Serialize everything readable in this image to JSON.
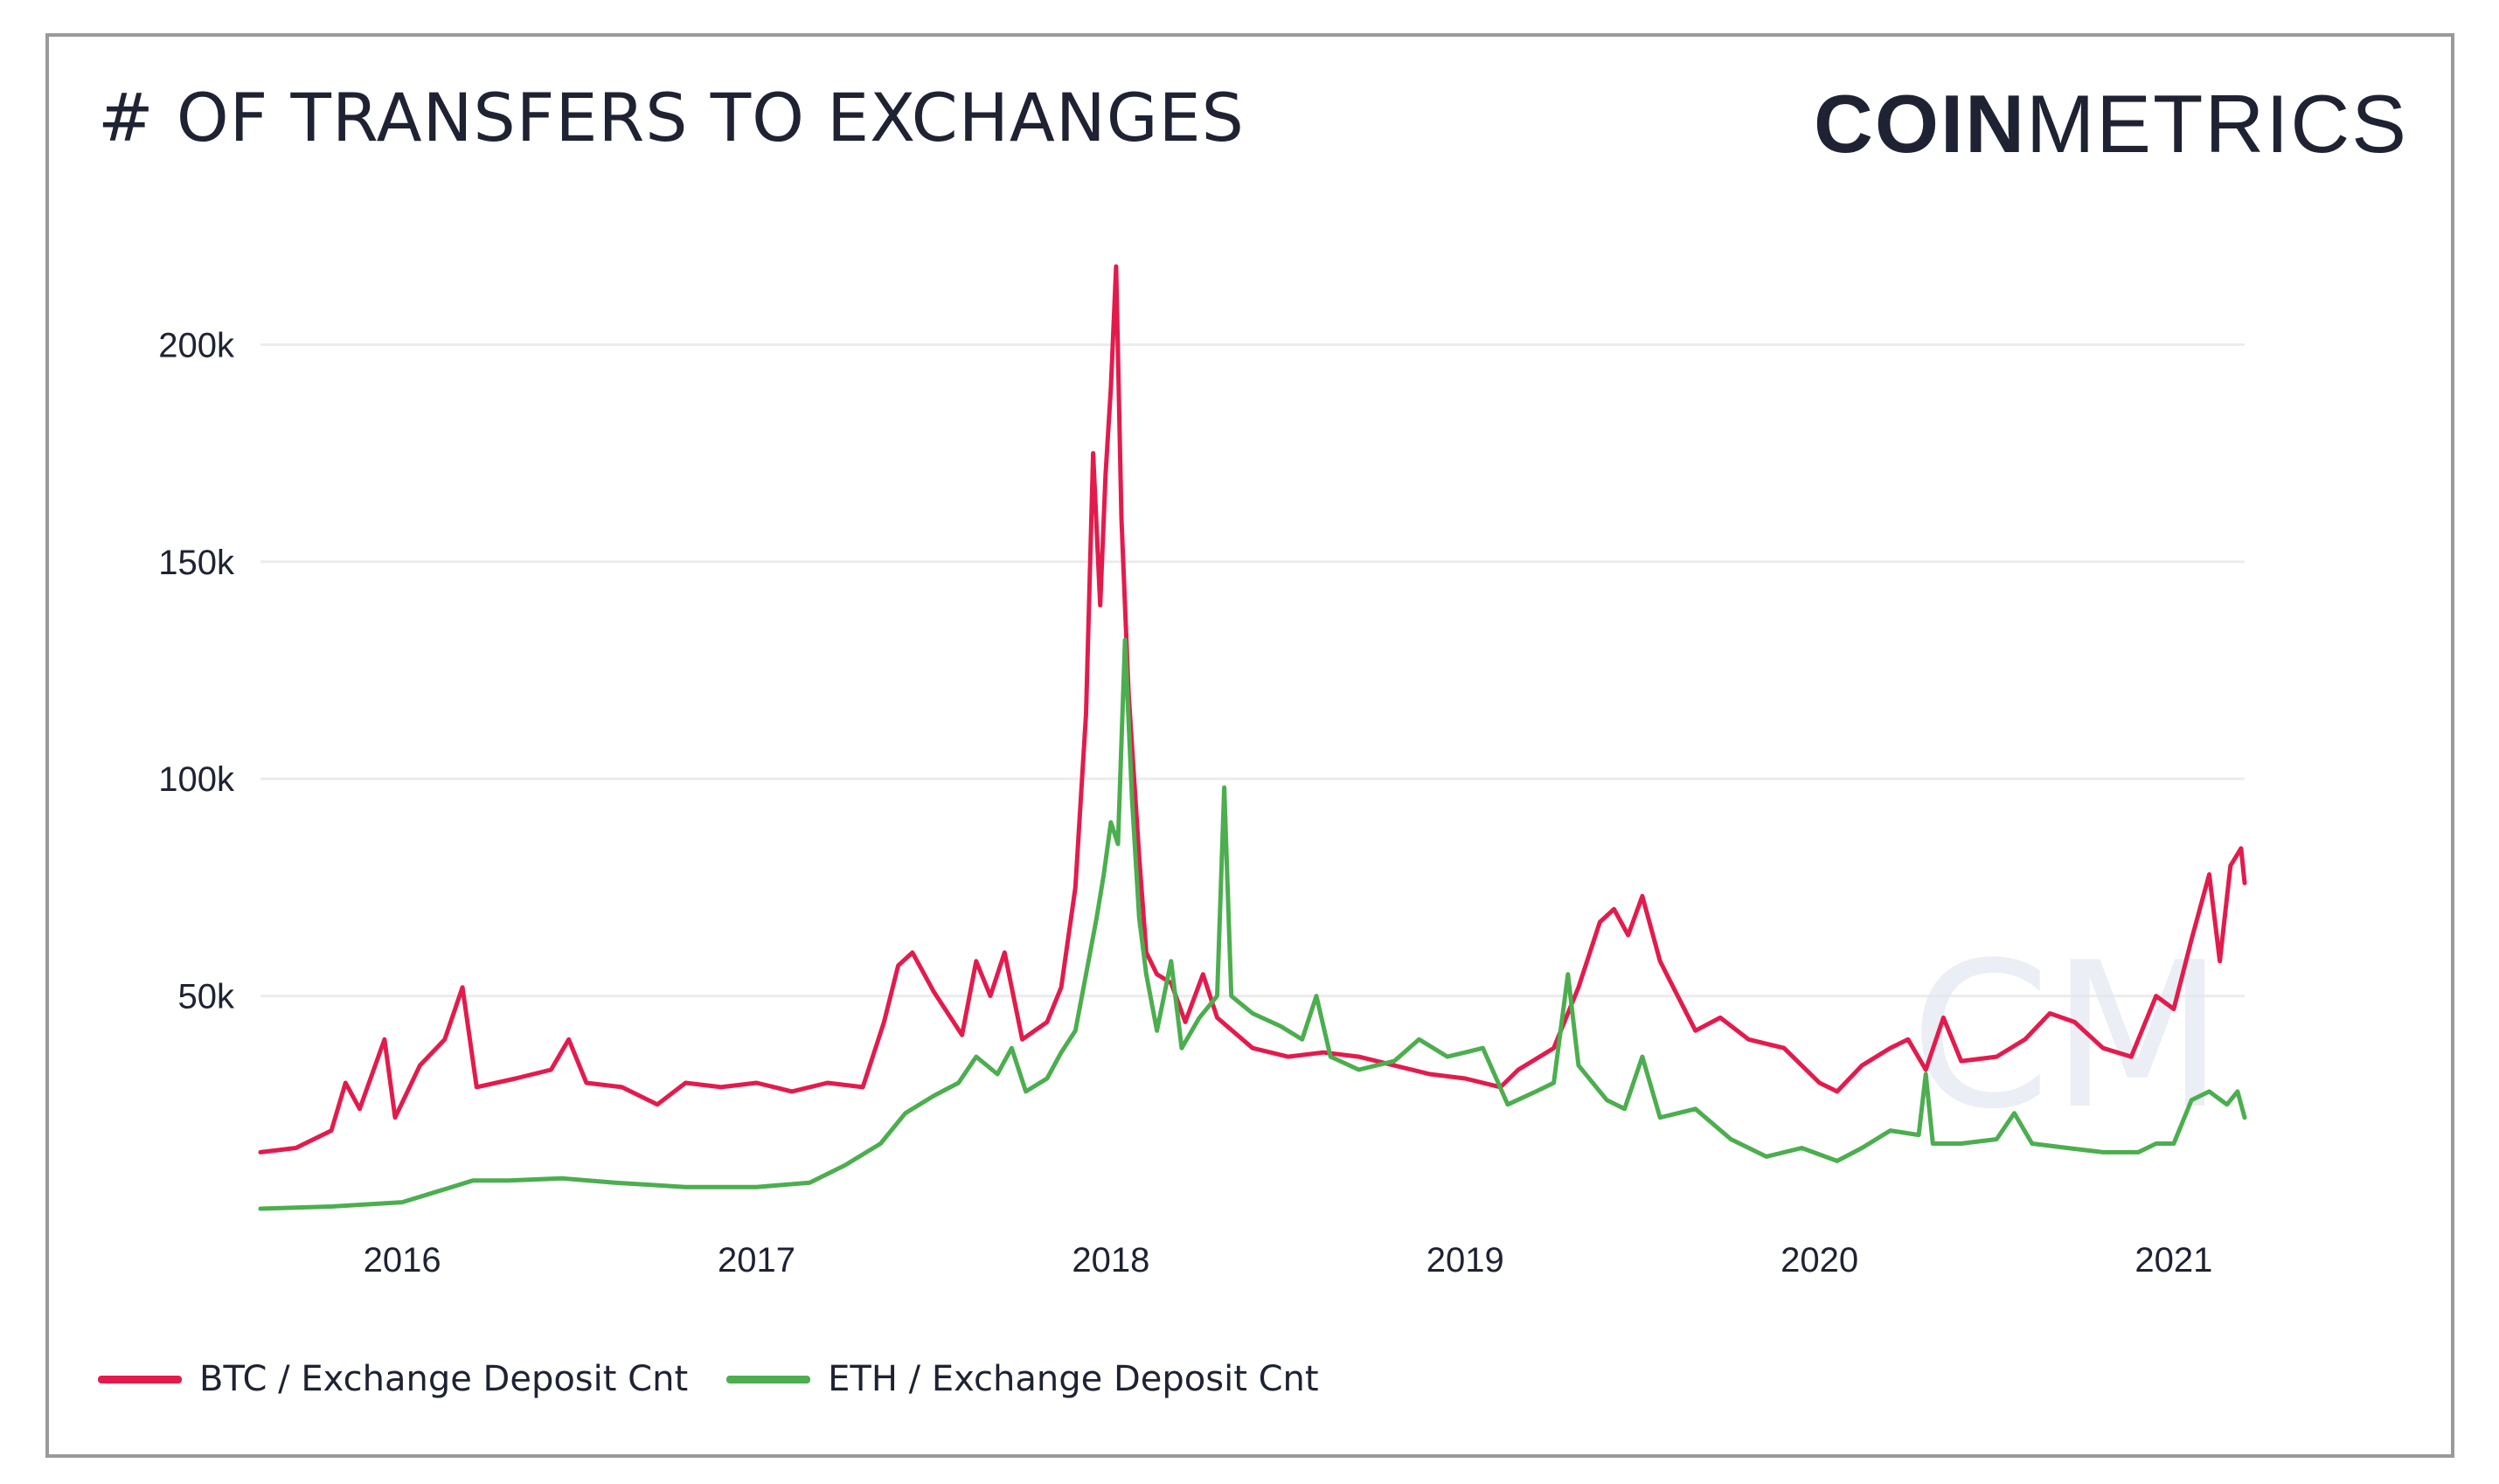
{
  "header": {
    "title": "# OF TRANSFERS TO EXCHANGES",
    "logo": {
      "bold": "COIN",
      "light": "METRICS"
    }
  },
  "watermark": "CM",
  "colors": {
    "btc": "#e31b4c",
    "eth": "#4cae4f",
    "grid": "#ececec",
    "text": "#1e2232",
    "frame": "#9a9a9a"
  },
  "chart_data": {
    "type": "line",
    "title": "# OF TRANSFERS TO EXCHANGES",
    "xlabel": "",
    "ylabel": "",
    "xlim": [
      2015.6,
      2021.2
    ],
    "ylim": [
      0,
      220000
    ],
    "x_ticks": [
      {
        "value": 2016,
        "label": "2016"
      },
      {
        "value": 2017,
        "label": "2017"
      },
      {
        "value": 2018,
        "label": "2018"
      },
      {
        "value": 2019,
        "label": "2019"
      },
      {
        "value": 2020,
        "label": "2020"
      },
      {
        "value": 2021,
        "label": "2021"
      }
    ],
    "y_ticks": [
      {
        "value": 50000,
        "label": "50k"
      },
      {
        "value": 100000,
        "label": "100k"
      },
      {
        "value": 150000,
        "label": "150k"
      },
      {
        "value": 200000,
        "label": "200k"
      }
    ],
    "grid": "horizontal",
    "legend_position": "bottom-left",
    "series": [
      {
        "name": "BTC / Exchange Deposit Cnt",
        "color": "#e31b4c",
        "points": [
          [
            2015.6,
            14000
          ],
          [
            2015.7,
            15000
          ],
          [
            2015.8,
            19000
          ],
          [
            2015.84,
            30000
          ],
          [
            2015.88,
            24000
          ],
          [
            2015.95,
            40000
          ],
          [
            2015.98,
            22000
          ],
          [
            2016.05,
            34000
          ],
          [
            2016.12,
            40000
          ],
          [
            2016.17,
            52000
          ],
          [
            2016.21,
            29000
          ],
          [
            2016.32,
            31000
          ],
          [
            2016.42,
            33000
          ],
          [
            2016.47,
            40000
          ],
          [
            2016.52,
            30000
          ],
          [
            2016.62,
            29000
          ],
          [
            2016.72,
            25000
          ],
          [
            2016.8,
            30000
          ],
          [
            2016.9,
            29000
          ],
          [
            2017.0,
            30000
          ],
          [
            2017.1,
            28000
          ],
          [
            2017.2,
            30000
          ],
          [
            2017.3,
            29000
          ],
          [
            2017.36,
            44000
          ],
          [
            2017.4,
            57000
          ],
          [
            2017.44,
            60000
          ],
          [
            2017.5,
            51000
          ],
          [
            2017.58,
            41000
          ],
          [
            2017.62,
            58000
          ],
          [
            2017.66,
            50000
          ],
          [
            2017.7,
            60000
          ],
          [
            2017.75,
            40000
          ],
          [
            2017.82,
            44000
          ],
          [
            2017.86,
            52000
          ],
          [
            2017.9,
            75000
          ],
          [
            2017.93,
            115000
          ],
          [
            2017.95,
            175000
          ],
          [
            2017.97,
            140000
          ],
          [
            2017.985,
            170000
          ],
          [
            2018.0,
            190000
          ],
          [
            2018.015,
            218000
          ],
          [
            2018.03,
            160000
          ],
          [
            2018.05,
            120000
          ],
          [
            2018.08,
            82000
          ],
          [
            2018.1,
            60000
          ],
          [
            2018.13,
            55000
          ],
          [
            2018.17,
            53000
          ],
          [
            2018.21,
            44000
          ],
          [
            2018.26,
            55000
          ],
          [
            2018.3,
            45000
          ],
          [
            2018.4,
            38000
          ],
          [
            2018.5,
            36000
          ],
          [
            2018.6,
            37000
          ],
          [
            2018.7,
            36000
          ],
          [
            2018.8,
            34000
          ],
          [
            2018.9,
            32000
          ],
          [
            2019.0,
            31000
          ],
          [
            2019.1,
            29000
          ],
          [
            2019.15,
            33000
          ],
          [
            2019.25,
            38000
          ],
          [
            2019.32,
            52000
          ],
          [
            2019.38,
            67000
          ],
          [
            2019.42,
            70000
          ],
          [
            2019.46,
            64000
          ],
          [
            2019.5,
            73000
          ],
          [
            2019.55,
            58000
          ],
          [
            2019.6,
            50000
          ],
          [
            2019.65,
            42000
          ],
          [
            2019.72,
            45000
          ],
          [
            2019.8,
            40000
          ],
          [
            2019.9,
            38000
          ],
          [
            2020.0,
            30000
          ],
          [
            2020.05,
            28000
          ],
          [
            2020.12,
            34000
          ],
          [
            2020.2,
            38000
          ],
          [
            2020.25,
            40000
          ],
          [
            2020.3,
            33000
          ],
          [
            2020.35,
            45000
          ],
          [
            2020.4,
            35000
          ],
          [
            2020.5,
            36000
          ],
          [
            2020.58,
            40000
          ],
          [
            2020.65,
            46000
          ],
          [
            2020.72,
            44000
          ],
          [
            2020.8,
            38000
          ],
          [
            2020.88,
            36000
          ],
          [
            2020.95,
            50000
          ],
          [
            2021.0,
            47000
          ],
          [
            2021.05,
            63000
          ],
          [
            2021.1,
            78000
          ],
          [
            2021.13,
            58000
          ],
          [
            2021.16,
            80000
          ],
          [
            2021.19,
            84000
          ],
          [
            2021.2,
            76000
          ]
        ]
      },
      {
        "name": "ETH / Exchange Deposit Cnt",
        "color": "#4cae4f",
        "points": [
          [
            2015.6,
            1000
          ],
          [
            2015.8,
            1500
          ],
          [
            2016.0,
            2500
          ],
          [
            2016.1,
            5000
          ],
          [
            2016.2,
            7500
          ],
          [
            2016.3,
            7500
          ],
          [
            2016.45,
            8000
          ],
          [
            2016.6,
            7000
          ],
          [
            2016.8,
            6000
          ],
          [
            2017.0,
            6000
          ],
          [
            2017.15,
            7000
          ],
          [
            2017.25,
            11000
          ],
          [
            2017.35,
            16000
          ],
          [
            2017.42,
            23000
          ],
          [
            2017.5,
            27000
          ],
          [
            2017.57,
            30000
          ],
          [
            2017.62,
            36000
          ],
          [
            2017.68,
            32000
          ],
          [
            2017.72,
            38000
          ],
          [
            2017.76,
            28000
          ],
          [
            2017.82,
            31000
          ],
          [
            2017.86,
            37000
          ],
          [
            2017.9,
            42000
          ],
          [
            2017.93,
            55000
          ],
          [
            2017.96,
            68000
          ],
          [
            2017.98,
            78000
          ],
          [
            2018.0,
            90000
          ],
          [
            2018.02,
            85000
          ],
          [
            2018.04,
            132000
          ],
          [
            2018.06,
            95000
          ],
          [
            2018.08,
            68000
          ],
          [
            2018.1,
            55000
          ],
          [
            2018.13,
            42000
          ],
          [
            2018.17,
            58000
          ],
          [
            2018.2,
            38000
          ],
          [
            2018.25,
            45000
          ],
          [
            2018.3,
            50000
          ],
          [
            2018.32,
            98000
          ],
          [
            2018.34,
            50000
          ],
          [
            2018.4,
            46000
          ],
          [
            2018.48,
            43000
          ],
          [
            2018.54,
            40000
          ],
          [
            2018.58,
            50000
          ],
          [
            2018.62,
            36000
          ],
          [
            2018.7,
            33000
          ],
          [
            2018.8,
            35000
          ],
          [
            2018.87,
            40000
          ],
          [
            2018.95,
            36000
          ],
          [
            2019.0,
            37000
          ],
          [
            2019.05,
            38000
          ],
          [
            2019.12,
            25000
          ],
          [
            2019.2,
            28000
          ],
          [
            2019.25,
            30000
          ],
          [
            2019.29,
            55000
          ],
          [
            2019.32,
            34000
          ],
          [
            2019.4,
            26000
          ],
          [
            2019.45,
            24000
          ],
          [
            2019.5,
            36000
          ],
          [
            2019.55,
            22000
          ],
          [
            2019.65,
            24000
          ],
          [
            2019.75,
            17000
          ],
          [
            2019.85,
            13000
          ],
          [
            2019.95,
            15000
          ],
          [
            2020.05,
            12000
          ],
          [
            2020.12,
            15000
          ],
          [
            2020.2,
            19000
          ],
          [
            2020.28,
            18000
          ],
          [
            2020.3,
            32000
          ],
          [
            2020.32,
            16000
          ],
          [
            2020.4,
            16000
          ],
          [
            2020.5,
            17000
          ],
          [
            2020.55,
            23000
          ],
          [
            2020.6,
            16000
          ],
          [
            2020.7,
            15000
          ],
          [
            2020.8,
            14000
          ],
          [
            2020.9,
            14000
          ],
          [
            2020.95,
            16000
          ],
          [
            2021.0,
            16000
          ],
          [
            2021.05,
            26000
          ],
          [
            2021.1,
            28000
          ],
          [
            2021.15,
            25000
          ],
          [
            2021.18,
            28000
          ],
          [
            2021.2,
            22000
          ]
        ]
      }
    ]
  },
  "legend": [
    {
      "label": "BTC / Exchange Deposit Cnt",
      "color": "#e31b4c"
    },
    {
      "label": "ETH / Exchange Deposit Cnt",
      "color": "#4cae4f"
    }
  ]
}
